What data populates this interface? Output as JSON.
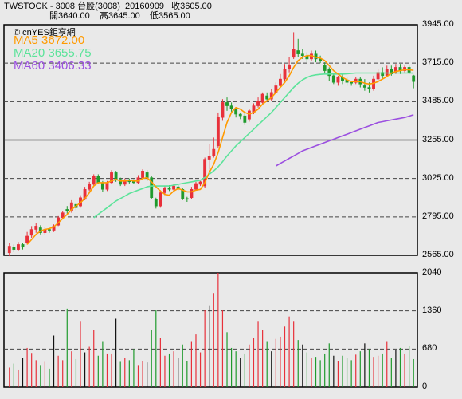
{
  "header": {
    "symbol": "TWSTOCK - 3008 台股(3008)",
    "date": "20160909",
    "close": "收3605.00",
    "open": "開3640.00",
    "high": "高3645.00",
    "low": "低3565.00"
  },
  "legend": {
    "source": "© cnYES鉅亨網",
    "ma5": "MA5 3672.00",
    "ma20": "MA20 3655.75",
    "ma60": "MA60 3406.33"
  },
  "colors": {
    "up": "#e8303a",
    "down": "#1f9a2c",
    "ma5": "#ff9a00",
    "ma20": "#5ce39a",
    "ma60": "#9b4fe0",
    "grid": "#444444",
    "bg": "#e9e9e9",
    "border": "#000000"
  },
  "chart_data": [
    {
      "type": "candlestick",
      "ylim": [
        2565,
        3945
      ],
      "y_ticks": [
        "3945.00",
        "3715.00",
        "3485.00",
        "3255.00",
        "3025.00",
        "2795.00",
        "2565.00"
      ],
      "y_tick_values": [
        3945,
        3715,
        3485,
        3255,
        3025,
        2795,
        2565
      ],
      "candles": [
        [
          2580,
          2620,
          2560,
          2640
        ],
        [
          2615,
          2600,
          2585,
          2630
        ],
        [
          2600,
          2630,
          2590,
          2645
        ],
        [
          2630,
          2615,
          2600,
          2640
        ],
        [
          2640,
          2680,
          2630,
          2705
        ],
        [
          2685,
          2720,
          2670,
          2740
        ],
        [
          2720,
          2740,
          2700,
          2760
        ],
        [
          2730,
          2700,
          2690,
          2745
        ],
        [
          2700,
          2720,
          2690,
          2735
        ],
        [
          2720,
          2715,
          2700,
          2730
        ],
        [
          2715,
          2740,
          2705,
          2750
        ],
        [
          2745,
          2790,
          2740,
          2800
        ],
        [
          2790,
          2820,
          2780,
          2830
        ],
        [
          2840,
          2830,
          2815,
          2860
        ],
        [
          2830,
          2880,
          2820,
          2895
        ],
        [
          2870,
          2850,
          2835,
          2880
        ],
        [
          2860,
          2910,
          2850,
          2925
        ],
        [
          2900,
          2960,
          2895,
          2975
        ],
        [
          2960,
          2990,
          2950,
          3005
        ],
        [
          2990,
          3040,
          2980,
          3050
        ],
        [
          3040,
          3000,
          2990,
          3050
        ],
        [
          3000,
          2960,
          2945,
          3010
        ],
        [
          2960,
          3000,
          2950,
          3010
        ],
        [
          3000,
          3060,
          2990,
          3075
        ],
        [
          3060,
          3020,
          3005,
          3070
        ],
        [
          3020,
          2990,
          2980,
          3030
        ],
        [
          2990,
          3015,
          2980,
          3025
        ],
        [
          3015,
          3005,
          2995,
          3025
        ],
        [
          3010,
          3000,
          2990,
          3020
        ],
        [
          3000,
          3030,
          2990,
          3045
        ],
        [
          3030,
          3070,
          3020,
          3080
        ],
        [
          3060,
          3030,
          3010,
          3075
        ],
        [
          3030,
          2910,
          2900,
          3040
        ],
        [
          2900,
          2860,
          2845,
          2910
        ],
        [
          2860,
          2940,
          2850,
          2955
        ],
        [
          2940,
          2970,
          2925,
          2980
        ],
        [
          2970,
          2960,
          2950,
          2985
        ],
        [
          2960,
          2980,
          2945,
          2990
        ],
        [
          2975,
          2965,
          2955,
          2985
        ],
        [
          2960,
          2905,
          2895,
          2970
        ],
        [
          2905,
          2900,
          2885,
          2915
        ],
        [
          2910,
          2960,
          2900,
          2975
        ],
        [
          2960,
          2995,
          2955,
          3005
        ],
        [
          2990,
          3005,
          2980,
          3010
        ],
        [
          2980,
          3140,
          2970,
          3150
        ],
        [
          3140,
          3160,
          3080,
          3230
        ],
        [
          3160,
          3200,
          3150,
          3270
        ],
        [
          3220,
          3390,
          3210,
          3420
        ],
        [
          3390,
          3480,
          3370,
          3500
        ],
        [
          3480,
          3460,
          3430,
          3510
        ],
        [
          3460,
          3440,
          3420,
          3480
        ],
        [
          3440,
          3410,
          3390,
          3450
        ],
        [
          3410,
          3400,
          3380,
          3420
        ],
        [
          3400,
          3360,
          3345,
          3415
        ],
        [
          3380,
          3430,
          3365,
          3440
        ],
        [
          3420,
          3460,
          3410,
          3475
        ],
        [
          3460,
          3490,
          3450,
          3510
        ],
        [
          3480,
          3530,
          3470,
          3540
        ],
        [
          3520,
          3500,
          3490,
          3540
        ],
        [
          3500,
          3540,
          3490,
          3560
        ],
        [
          3540,
          3580,
          3530,
          3600
        ],
        [
          3580,
          3620,
          3570,
          3650
        ],
        [
          3620,
          3680,
          3610,
          3710
        ],
        [
          3680,
          3700,
          3660,
          3750
        ],
        [
          3750,
          3800,
          3740,
          3900
        ],
        [
          3790,
          3770,
          3750,
          3860
        ],
        [
          3770,
          3760,
          3740,
          3800
        ],
        [
          3760,
          3740,
          3720,
          3780
        ],
        [
          3740,
          3770,
          3730,
          3790
        ],
        [
          3770,
          3740,
          3720,
          3790
        ],
        [
          3740,
          3730,
          3715,
          3760
        ],
        [
          3700,
          3670,
          3650,
          3720
        ],
        [
          3680,
          3640,
          3610,
          3690
        ],
        [
          3640,
          3600,
          3590,
          3650
        ],
        [
          3600,
          3630,
          3580,
          3640
        ],
        [
          3630,
          3610,
          3590,
          3650
        ],
        [
          3615,
          3600,
          3580,
          3630
        ],
        [
          3600,
          3595,
          3580,
          3610
        ],
        [
          3600,
          3620,
          3590,
          3630
        ],
        [
          3620,
          3590,
          3570,
          3630
        ],
        [
          3580,
          3570,
          3550,
          3620
        ],
        [
          3570,
          3560,
          3540,
          3600
        ],
        [
          3560,
          3620,
          3550,
          3640
        ],
        [
          3620,
          3660,
          3600,
          3680
        ],
        [
          3660,
          3640,
          3620,
          3690
        ],
        [
          3640,
          3680,
          3630,
          3700
        ],
        [
          3680,
          3650,
          3640,
          3700
        ],
        [
          3660,
          3690,
          3650,
          3710
        ],
        [
          3690,
          3670,
          3650,
          3710
        ],
        [
          3670,
          3690,
          3660,
          3700
        ],
        [
          3690,
          3660,
          3650,
          3700
        ],
        [
          3640,
          3605,
          3565,
          3645
        ]
      ],
      "ma5": [
        null,
        null,
        null,
        null,
        2630,
        2660,
        2690,
        2710,
        2720,
        2725,
        2735,
        2760,
        2785,
        2810,
        2840,
        2860,
        2880,
        2905,
        2940,
        2980,
        3000,
        3000,
        3000,
        3010,
        3020,
        3010,
        3010,
        3015,
        3010,
        3010,
        3025,
        3030,
        3005,
        2975,
        2950,
        2930,
        2925,
        2950,
        2965,
        2955,
        2945,
        2945,
        2955,
        2960,
        3000,
        3060,
        3110,
        3180,
        3270,
        3360,
        3420,
        3450,
        3440,
        3420,
        3410,
        3420,
        3440,
        3470,
        3490,
        3510,
        3540,
        3570,
        3600,
        3640,
        3690,
        3730,
        3750,
        3760,
        3760,
        3750,
        3745,
        3730,
        3700,
        3670,
        3650,
        3630,
        3615,
        3605,
        3605,
        3605,
        3595,
        3590,
        3595,
        3605,
        3620,
        3635,
        3655,
        3665,
        3670,
        3675,
        3675,
        3672
      ],
      "ma20": [
        null,
        null,
        null,
        null,
        null,
        null,
        null,
        null,
        null,
        null,
        null,
        null,
        null,
        null,
        null,
        null,
        null,
        null,
        null,
        2790,
        2810,
        2830,
        2850,
        2870,
        2890,
        2905,
        2920,
        2935,
        2945,
        2955,
        2965,
        2975,
        2980,
        2980,
        2980,
        2980,
        2980,
        2985,
        2990,
        2995,
        3000,
        3005,
        3010,
        3015,
        3030,
        3050,
        3070,
        3095,
        3125,
        3160,
        3190,
        3220,
        3245,
        3270,
        3295,
        3320,
        3345,
        3370,
        3395,
        3420,
        3450,
        3480,
        3510,
        3540,
        3570,
        3595,
        3615,
        3630,
        3640,
        3645,
        3648,
        3650,
        3650,
        3650,
        3650,
        3650,
        3652,
        3654,
        3656,
        3656,
        3656,
        3656,
        3656,
        3656,
        3656,
        3656,
        3656,
        3656,
        3656,
        3656,
        3656,
        3655.75
      ],
      "ma60": [
        null,
        null,
        null,
        null,
        null,
        null,
        null,
        null,
        null,
        null,
        null,
        null,
        null,
        null,
        null,
        null,
        null,
        null,
        null,
        null,
        null,
        null,
        null,
        null,
        null,
        null,
        null,
        null,
        null,
        null,
        null,
        null,
        null,
        null,
        null,
        null,
        null,
        null,
        null,
        null,
        null,
        null,
        null,
        null,
        null,
        null,
        null,
        null,
        null,
        null,
        null,
        null,
        null,
        null,
        null,
        null,
        null,
        null,
        null,
        null,
        3100,
        3115,
        3130,
        3145,
        3160,
        3175,
        3190,
        3200,
        3210,
        3220,
        3230,
        3240,
        3250,
        3260,
        3270,
        3280,
        3290,
        3300,
        3310,
        3320,
        3330,
        3340,
        3350,
        3360,
        3365,
        3370,
        3375,
        3380,
        3385,
        3390,
        3398,
        3406.33
      ]
    },
    {
      "type": "bar",
      "ylim": [
        0,
        2040
      ],
      "y_ticks": [
        "2040",
        "1360",
        "680",
        "0"
      ],
      "y_tick_values": [
        2040,
        1360,
        680,
        0
      ],
      "values": [
        350,
        420,
        300,
        520,
        700,
        610,
        480,
        380,
        450,
        330,
        920,
        560,
        480,
        1400,
        640,
        500,
        1180,
        620,
        720,
        1020,
        560,
        820,
        600,
        600,
        1220,
        450,
        520,
        480,
        680,
        380,
        460,
        440,
        1020,
        1380,
        880,
        560,
        600,
        640,
        520,
        760,
        460,
        820,
        940,
        620,
        1380,
        1460,
        1680,
        2040,
        1380,
        980,
        700,
        640,
        520,
        600,
        760,
        880,
        1180,
        1020,
        820,
        640,
        860,
        900,
        1080,
        1260,
        1180,
        840,
        760,
        620,
        520,
        540,
        480,
        600,
        780,
        560,
        460,
        560,
        520,
        480,
        580,
        640,
        780,
        680,
        540,
        560,
        600,
        820,
        520,
        660,
        700,
        600,
        740,
        500
      ]
    }
  ]
}
